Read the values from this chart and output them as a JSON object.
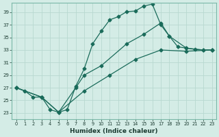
{
  "title": "",
  "xlabel": "Humidex (Indice chaleur)",
  "ylabel": "",
  "bg_color": "#d4ece6",
  "line_color": "#1a6b5a",
  "grid_color": "#b8d8d0",
  "x_min": -0.5,
  "x_max": 23.5,
  "y_min": 22,
  "y_max": 40.5,
  "yticks": [
    23,
    25,
    27,
    29,
    31,
    33,
    35,
    37,
    39
  ],
  "xticks": [
    0,
    1,
    2,
    3,
    4,
    5,
    6,
    7,
    8,
    9,
    10,
    11,
    12,
    13,
    14,
    15,
    16,
    17,
    18,
    19,
    20,
    21,
    22,
    23
  ],
  "line1_x": [
    0,
    1,
    2,
    3,
    4,
    5,
    6,
    7,
    8,
    9,
    10,
    11,
    12,
    13,
    14,
    15,
    16,
    17,
    18,
    19,
    20,
    21,
    22,
    23
  ],
  "line1_y": [
    27.0,
    26.5,
    25.5,
    25.5,
    23.5,
    23.1,
    23.5,
    27.2,
    30.0,
    34.0,
    36.0,
    37.8,
    38.3,
    39.1,
    39.2,
    40.0,
    40.3,
    37.0,
    35.2,
    33.5,
    33.3,
    33.1,
    33.0,
    33.0
  ],
  "line2_x": [
    0,
    3,
    5,
    7,
    8,
    10,
    13,
    15,
    17,
    18,
    20,
    22,
    23
  ],
  "line2_y": [
    27.0,
    25.5,
    23.1,
    27.0,
    29.0,
    30.5,
    34.0,
    35.5,
    37.3,
    35.2,
    33.3,
    33.0,
    33.0
  ],
  "line3_x": [
    0,
    3,
    5,
    8,
    11,
    14,
    17,
    20,
    23
  ],
  "line3_y": [
    27.0,
    25.5,
    23.1,
    26.5,
    29.0,
    31.5,
    33.0,
    32.8,
    33.0
  ]
}
